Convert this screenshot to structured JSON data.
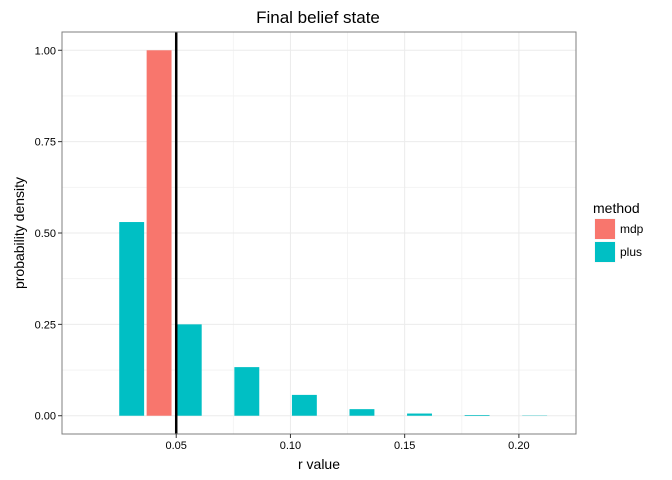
{
  "chart_data": {
    "type": "bar",
    "title": "Final belief state",
    "xlabel": "r value",
    "ylabel": "probability density",
    "xlim": [
      0.0,
      0.225
    ],
    "ylim": [
      -0.05,
      1.05
    ],
    "x_ticks": [
      {
        "value": 0.05,
        "label": "0.05"
      },
      {
        "value": 0.1,
        "label": "0.10"
      },
      {
        "value": 0.15,
        "label": "0.15"
      },
      {
        "value": 0.2,
        "label": "0.20"
      }
    ],
    "y_ticks": [
      {
        "value": 0.0,
        "label": "0.00"
      },
      {
        "value": 0.25,
        "label": "0.25"
      },
      {
        "value": 0.5,
        "label": "0.50"
      },
      {
        "value": 0.75,
        "label": "0.75"
      },
      {
        "value": 1.0,
        "label": "1.00"
      }
    ],
    "grid": true,
    "legend": {
      "title": "method",
      "position": "right"
    },
    "series": [
      {
        "name": "mdp",
        "color": "#F8766D",
        "bars": [
          {
            "x": 0.0425,
            "value": 1.0
          }
        ]
      },
      {
        "name": "plus",
        "color": "#00BFC4",
        "bars": [
          {
            "x": 0.0305,
            "value": 0.53
          },
          {
            "x": 0.0557,
            "value": 0.25
          },
          {
            "x": 0.0809,
            "value": 0.133
          },
          {
            "x": 0.1061,
            "value": 0.057
          },
          {
            "x": 0.1313,
            "value": 0.018
          },
          {
            "x": 0.1565,
            "value": 0.006
          },
          {
            "x": 0.1817,
            "value": 0.002
          },
          {
            "x": 0.2069,
            "value": 0.0005
          }
        ]
      }
    ],
    "bar_width": 0.0109,
    "vline": {
      "x": 0.05,
      "color": "#000000"
    }
  }
}
